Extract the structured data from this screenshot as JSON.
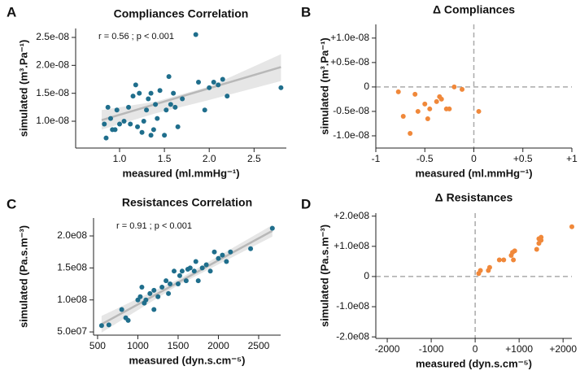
{
  "chart_data": [
    {
      "type": "scatter",
      "panel_label": "A",
      "title": "Compliances Correlation",
      "xlabel": "measured (ml.mmHg⁻¹)",
      "ylabel": "simulated (m³.Pa⁻¹)",
      "annotation": "r = 0.56 ; p < 0.001",
      "color": "#1f6e8c",
      "x": [
        0.83,
        0.85,
        0.87,
        0.9,
        0.92,
        0.95,
        0.97,
        1.0,
        1.05,
        1.1,
        1.12,
        1.15,
        1.18,
        1.2,
        1.22,
        1.25,
        1.27,
        1.3,
        1.32,
        1.35,
        1.35,
        1.38,
        1.4,
        1.42,
        1.45,
        1.5,
        1.52,
        1.55,
        1.57,
        1.6,
        1.62,
        1.65,
        1.7,
        1.85,
        1.88,
        1.95,
        2.0,
        2.05,
        2.1,
        2.15,
        2.2,
        2.8
      ],
      "y": [
        9.5e-09,
        7e-09,
        1.25e-08,
        1.05e-08,
        8.5e-09,
        8.5e-09,
        1.2e-08,
        9.5e-09,
        1e-08,
        1.25e-08,
        9.5e-09,
        1.45e-08,
        1.65e-08,
        9e-09,
        1.5e-08,
        8e-09,
        1e-08,
        1.2e-08,
        1.4e-08,
        7.5e-09,
        1.5e-08,
        8.5e-09,
        1.3e-08,
        1.05e-08,
        1.55e-08,
        7.5e-09,
        1.2e-08,
        1.8e-08,
        1.3e-08,
        1.5e-08,
        1.25e-08,
        9e-09,
        1.4e-08,
        2.55e-08,
        1.7e-08,
        1.2e-08,
        1.6e-08,
        1.7e-08,
        1.65e-08,
        1.75e-08,
        1.45e-08,
        1.6e-08
      ],
      "regression": {
        "x": [
          0.8,
          2.8
        ],
        "y": [
          1.02e-08,
          1.97e-08
        ]
      },
      "band": {
        "x": [
          0.8,
          1.4,
          2.0,
          2.8
        ],
        "upper": [
          1.2e-08,
          1.35e-08,
          1.62e-08,
          2.2e-08
        ],
        "lower": [
          8.5e-09,
          1.14e-08,
          1.38e-08,
          1.72e-08
        ]
      },
      "xlim": [
        0.51,
        2.86
      ],
      "ylim": [
        5.2e-09,
        2.66e-08
      ],
      "xticks": [
        {
          "value": 1,
          "label": "1.0"
        },
        1.5,
        {
          "value": 2,
          "label": "2.0"
        },
        2.5
      ],
      "yticks": [
        {
          "value": 1e-08,
          "label": "1.0e-08"
        },
        {
          "value": 1.5e-08,
          "label": "1.5e-08"
        },
        {
          "value": 2e-08,
          "label": "2.0e-08"
        },
        {
          "value": 2.5e-08,
          "label": "2.5e-08"
        }
      ]
    },
    {
      "type": "scatter",
      "panel_label": "B",
      "title": "Δ Compliances",
      "xlabel": "measured (ml.mmHg⁻¹)",
      "ylabel": "simulated (m³.Pa⁻¹)",
      "color": "#f0883a",
      "zero_lines": true,
      "x": [
        -0.77,
        -0.72,
        -0.65,
        -0.6,
        -0.57,
        -0.5,
        -0.47,
        -0.45,
        -0.38,
        -0.35,
        -0.33,
        -0.28,
        -0.25,
        -0.2,
        -0.12,
        0.05
      ],
      "y": [
        -1e-09,
        -6e-09,
        -9.5e-09,
        -1.5e-09,
        -5e-09,
        -3.5e-09,
        -6.5e-09,
        -4.5e-09,
        -3e-09,
        -2e-09,
        -2.5e-09,
        -4.5e-09,
        -4.5e-09,
        0,
        -5e-10,
        -5e-09
      ],
      "xlim": [
        -1,
        1
      ],
      "ylim": [
        -1.25e-08,
        1.28e-08
      ],
      "xticks": [
        -1,
        -0.5,
        0,
        {
          "value": 0.5,
          "label": "+0.5"
        },
        {
          "value": 1,
          "label": "+1"
        }
      ],
      "yticks": [
        {
          "value": -1e-08,
          "label": "-1.0e-08"
        },
        {
          "value": -5e-09,
          "label": "-0.5e-08"
        },
        0,
        {
          "value": 5e-09,
          "label": "+0.5e-08"
        },
        {
          "value": 1e-08,
          "label": "+1.0e-08"
        }
      ]
    },
    {
      "type": "scatter",
      "panel_label": "C",
      "title": "Resistances Correlation",
      "xlabel": "measured (dyn.s.cm⁻⁵)",
      "ylabel": "simulated (Pa.s.m⁻³)",
      "annotation": "r = 0.91 ; p < 0.001",
      "color": "#1f6e8c",
      "x": [
        550,
        640,
        800,
        850,
        880,
        1000,
        1030,
        1050,
        1080,
        1100,
        1150,
        1200,
        1200,
        1250,
        1300,
        1350,
        1380,
        1400,
        1450,
        1500,
        1520,
        1550,
        1600,
        1620,
        1650,
        1700,
        1720,
        1750,
        1800,
        1850,
        1900,
        1950,
        2000,
        2050,
        2100,
        2150,
        2400,
        2670
      ],
      "y": [
        60000000,
        61000000,
        85000000,
        72000000,
        68000000,
        100000000,
        105000000,
        120000000,
        95000000,
        100000000,
        110000000,
        85000000,
        115000000,
        105000000,
        120000000,
        130000000,
        110000000,
        125000000,
        145000000,
        125000000,
        138000000,
        145000000,
        130000000,
        148000000,
        150000000,
        145000000,
        160000000,
        130000000,
        150000000,
        155000000,
        145000000,
        175000000,
        165000000,
        170000000,
        160000000,
        175000000,
        180000000,
        212000000
      ],
      "regression": {
        "x": [
          550,
          2670
        ],
        "y": [
          62000000,
          208000000
        ]
      },
      "band": {
        "x": [
          550,
          1500,
          2670
        ],
        "upper": [
          75000000,
          132000000,
          217000000
        ],
        "lower": [
          49000000,
          123000000,
          199000000
        ]
      },
      "xlim": [
        450,
        2773
      ],
      "ylim": [
        45000000,
        228000000
      ],
      "xticks": [
        500,
        1000,
        1500,
        2000,
        2500
      ],
      "yticks": [
        {
          "value": 50000000,
          "label": "5.0e07"
        },
        {
          "value": 100000000,
          "label": "1.0e08"
        },
        {
          "value": 150000000,
          "label": "1.5e08"
        },
        {
          "value": 200000000,
          "label": "2.0e08"
        }
      ]
    },
    {
      "type": "scatter",
      "panel_label": "D",
      "title": "Δ Resistances",
      "xlabel": "measured (dyn.s.cm⁻⁵)",
      "ylabel": "simulated (Pa.s.m⁻³)",
      "color": "#f0883a",
      "zero_lines": true,
      "x": [
        80,
        120,
        300,
        330,
        550,
        650,
        820,
        850,
        870,
        900,
        1400,
        1450,
        1450,
        1500,
        1500,
        2200
      ],
      "y": [
        10000000,
        20000000,
        20000000,
        30000000,
        55000000,
        55000000,
        70000000,
        80000000,
        55000000,
        85000000,
        90000000,
        110000000,
        125000000,
        120000000,
        130000000,
        165000000
      ],
      "xlim": [
        -2260,
        2200
      ],
      "ylim": [
        -205000000,
        210000000
      ],
      "xticks": [
        -2000,
        -1000,
        0,
        {
          "value": 1000,
          "label": "+1000"
        },
        {
          "value": 2000,
          "label": "+2000"
        }
      ],
      "yticks": [
        {
          "value": -200000000,
          "label": "-2.0e08"
        },
        {
          "value": -100000000,
          "label": "-1.0e08"
        },
        0,
        {
          "value": 100000000,
          "label": "+1.0e08"
        },
        {
          "value": 200000000,
          "label": "+2.0e08"
        }
      ]
    }
  ]
}
